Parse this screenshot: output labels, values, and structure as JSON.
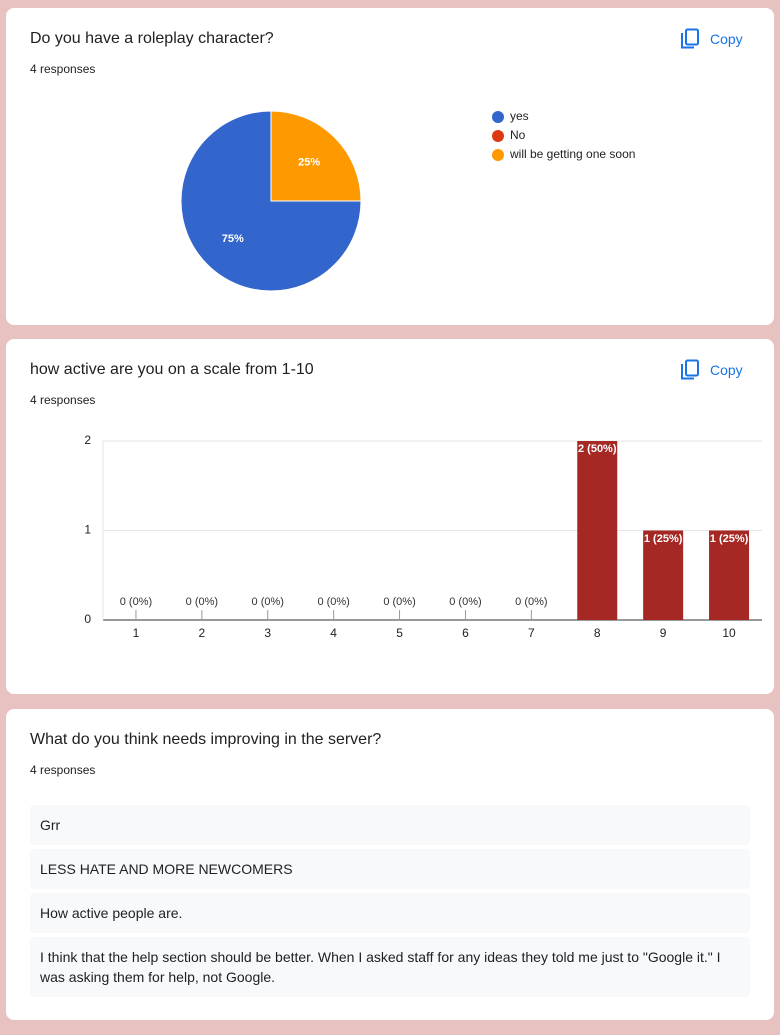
{
  "chart_data": [
    {
      "type": "pie",
      "title": "Do you have a roleplay character?",
      "subtitle": "4 responses",
      "copy_label": "Copy",
      "categories": [
        "yes",
        "No",
        "will be getting one soon"
      ],
      "values": [
        75,
        0,
        25
      ],
      "value_labels": [
        "75%",
        null,
        "25%"
      ],
      "colors": [
        "#3366cc",
        "#dc3912",
        "#ff9900"
      ]
    },
    {
      "type": "bar",
      "title": "how active are you on a scale from 1-10",
      "subtitle": "4 responses",
      "copy_label": "Copy",
      "categories": [
        "1",
        "2",
        "3",
        "4",
        "5",
        "6",
        "7",
        "8",
        "9",
        "10"
      ],
      "values": [
        0,
        0,
        0,
        0,
        0,
        0,
        0,
        2,
        1,
        1
      ],
      "value_labels": [
        "0 (0%)",
        "0 (0%)",
        "0 (0%)",
        "0 (0%)",
        "0 (0%)",
        "0 (0%)",
        "0 (0%)",
        "2 (50%)",
        "1 (25%)",
        "1 (25%)"
      ],
      "color": "#a52824",
      "ylim": [
        0,
        2
      ],
      "yticks": [
        0,
        1,
        2
      ],
      "grid": true
    }
  ],
  "text_question": {
    "title": "What do you think needs improving in the server?",
    "subtitle": "4 responses",
    "responses": [
      "Grr",
      "LESS HATE AND MORE NEWCOMERS",
      "How active people are.",
      "I think that the help section should be better. When I asked staff for any ideas they told me just to \"Google it.\" I was asking them for help, not Google."
    ]
  }
}
